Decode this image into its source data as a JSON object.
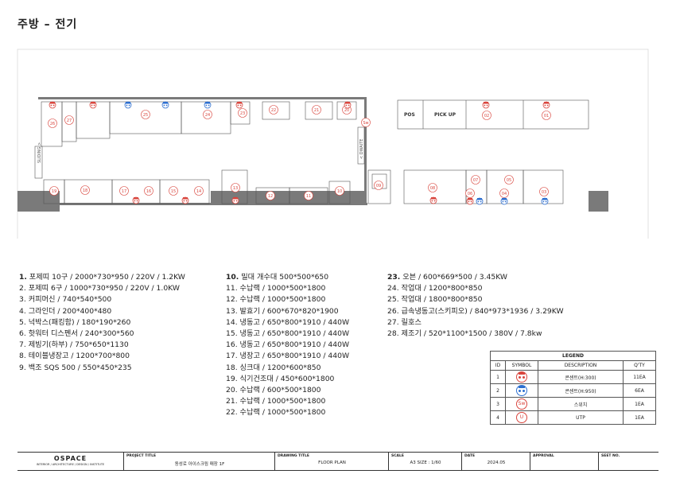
{
  "page_title": "주방 – 전기",
  "plan": {
    "labels": {
      "sliding": "SLIDING >",
      "dumbwaiter": "< DWAITE",
      "pos": "POS",
      "pickup": "PICK UP"
    },
    "items_top": [
      "26",
      "27",
      "25",
      "24",
      "23",
      "22",
      "21",
      "20"
    ],
    "items_bottom": [
      "19",
      "18",
      "17",
      "16",
      "15",
      "14",
      "13",
      "12",
      "11",
      "10",
      "09",
      "08",
      "07",
      "06",
      "05",
      "04",
      "03"
    ],
    "items_right": [
      "02",
      "01"
    ],
    "sw_label": "Sw"
  },
  "equipment": {
    "col1": [
      {
        "no": "1.",
        "text": "포제띠 10구 / 2000*730*950 / 220V / 1.2KW",
        "bold": true
      },
      {
        "no": "2.",
        "text": "포제띠 6구  / 1000*730*950 / 220V / 1.0KW"
      },
      {
        "no": "3.",
        "text": "커피머신 / 740*540*500"
      },
      {
        "no": "4.",
        "text": "그라인더 / 200*400*480"
      },
      {
        "no": "5.",
        "text": "넉박스(패킹함) / 180*190*260"
      },
      {
        "no": "6.",
        "text": "핫워터 디스펜서 / 240*300*560"
      },
      {
        "no": "7.",
        "text": "제빙기(하부) / 750*650*1130"
      },
      {
        "no": "8.",
        "text": "테이블냉장고 / 1200*700*800"
      },
      {
        "no": "9.",
        "text": "백조 SQS 500 / 550*450*235"
      }
    ],
    "col2": [
      {
        "no": "10.",
        "text": "밀대 개수대 500*500*650",
        "bold": true
      },
      {
        "no": "11.",
        "text": "수납랙 / 1000*500*1800"
      },
      {
        "no": "12.",
        "text": "수납랙 / 1000*500*1800"
      },
      {
        "no": "13.",
        "text": "발효기 / 600*670*820*1900"
      },
      {
        "no": "14.",
        "text": "냉동고 / 650*800*1910 / 440W"
      },
      {
        "no": "15.",
        "text": "냉동고 / 650*800*1910 / 440W"
      },
      {
        "no": "16.",
        "text": "냉동고 / 650*800*1910 / 440W"
      },
      {
        "no": "17.",
        "text": "냉장고 / 650*800*1910 / 440W"
      },
      {
        "no": "18.",
        "text": "싱크대 / 1200*600*850"
      },
      {
        "no": "19.",
        "text": "식기건조대 / 450*600*1800"
      },
      {
        "no": "20.",
        "text": "수납랙 / 600*500*1800"
      },
      {
        "no": "21.",
        "text": "수납랙 / 1000*500*1800"
      },
      {
        "no": "22.",
        "text": "수납랙 / 1000*500*1800"
      }
    ],
    "col3": [
      {
        "no": "23.",
        "text": "오븐 / 600*669*500 / 3.45KW",
        "bold": true
      },
      {
        "no": "24.",
        "text": "작업대 / 1200*800*850"
      },
      {
        "no": "25.",
        "text": "작업대 / 1800*800*850"
      },
      {
        "no": "26.",
        "text": "급속냉동고(스키피오) / 840*973*1936 / 3.29KW"
      },
      {
        "no": "27.",
        "text": "릴호스"
      },
      {
        "no": "28.",
        "text": "제조기 / 520*1100*1500 / 380V / 7.8kw"
      }
    ]
  },
  "legend": {
    "title": "LEGEND",
    "headers": [
      "ID",
      "SYMBOL",
      "DESCRIPTION",
      "Q'TY"
    ],
    "rows": [
      {
        "id": "1",
        "symbol": "outlet-red",
        "description": "콘센트(H:300)",
        "qty": "11EA"
      },
      {
        "id": "2",
        "symbol": "outlet-blue",
        "description": "콘센트(H:950)",
        "qty": "6EA"
      },
      {
        "id": "3",
        "symbol": "switch",
        "symbol_text": "Sw",
        "description": "스위치",
        "qty": "1EA"
      },
      {
        "id": "4",
        "symbol": "utp",
        "symbol_text": "U",
        "description": "UTP",
        "qty": "1EA"
      }
    ]
  },
  "title_block": {
    "logo": "OSPACE",
    "logo_sub": "INTERIOR / ARCHITECTURE / DESIGN / INSTITUTE",
    "project_title_label": "PROJECT TITLE",
    "project_title": "동성로 아이스크림 매장 1F",
    "drawing_title_label": "DRAWING TITLE",
    "drawing_title": "FLOOR PLAN",
    "scale_label": "SCALE",
    "scale": "A3 SIZE : 1/60",
    "date_label": "DATE",
    "date": "2024.05",
    "approval_label": "APPROVAL",
    "sheet_label": "SEET NO."
  },
  "colors": {
    "outlet_low": "#d9463e",
    "outlet_high": "#2e6fd0",
    "wall": "#777777"
  }
}
